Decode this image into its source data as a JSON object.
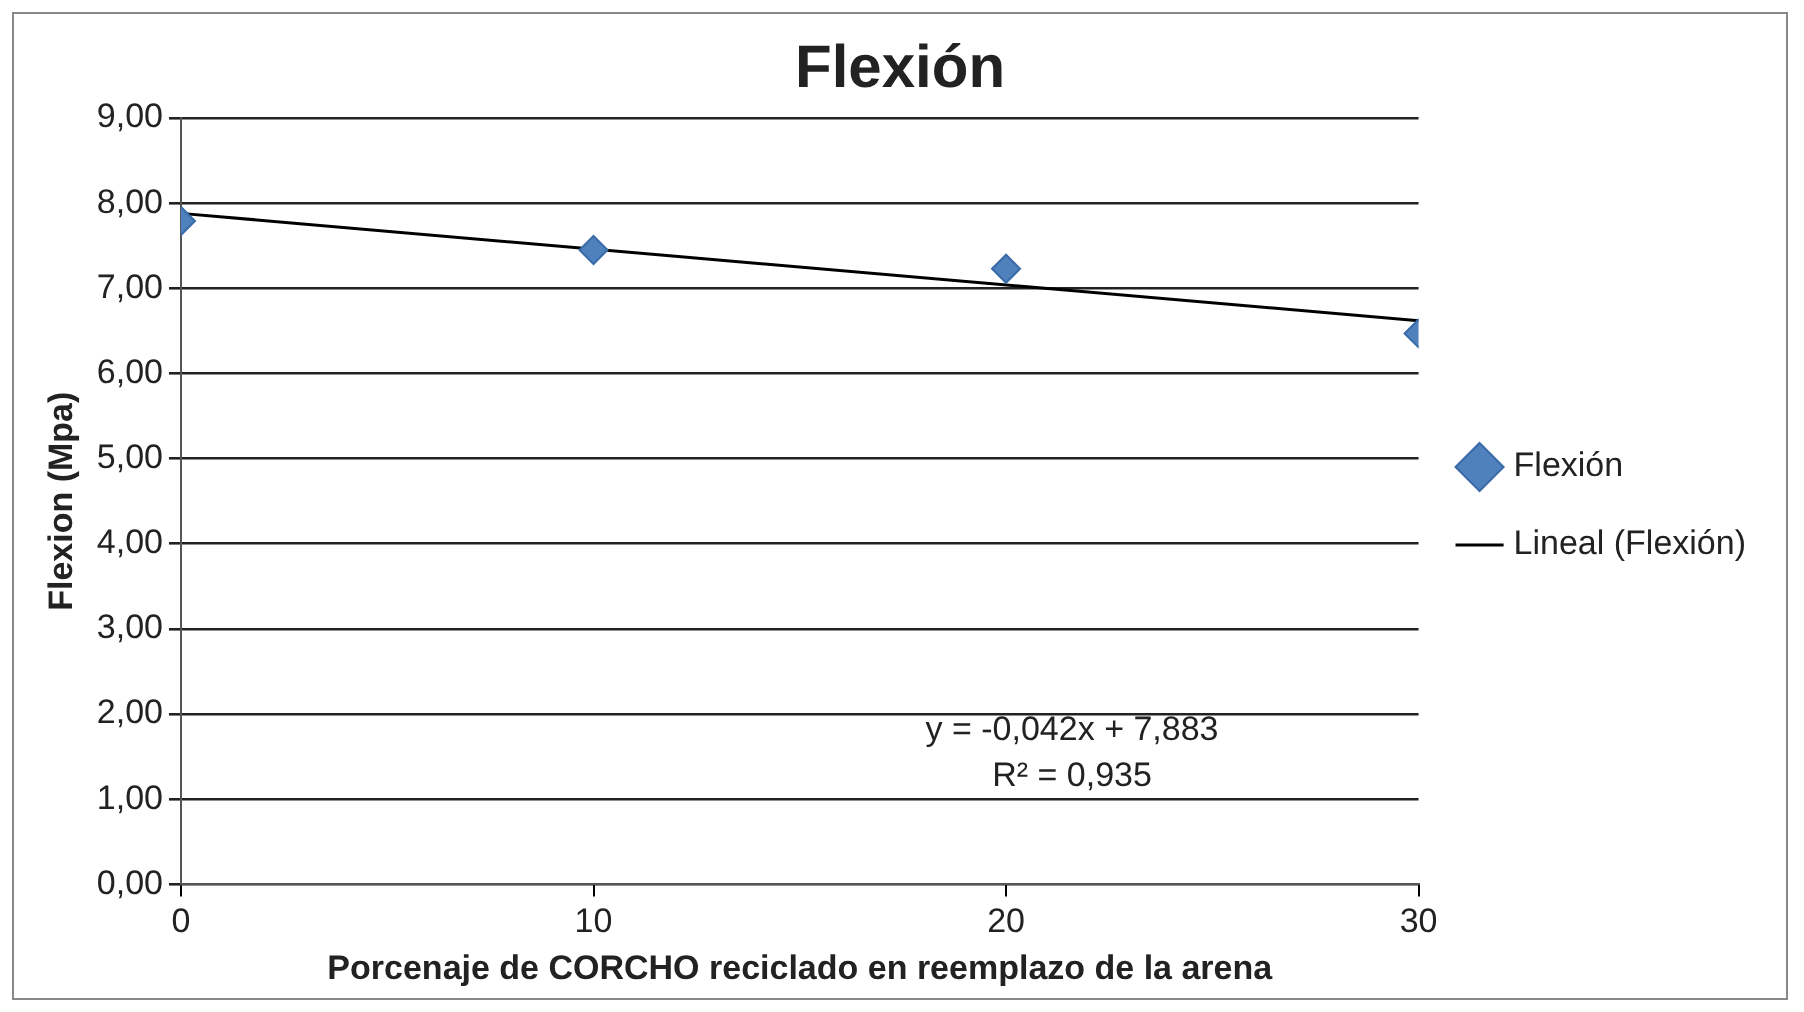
{
  "chart_data": {
    "type": "scatter",
    "title": "Flexión",
    "xlabel": "Porcenaje de CORCHO reciclado en reemplazo de la arena",
    "ylabel": "Flexion (Mpa)",
    "x": [
      0,
      10,
      20,
      30
    ],
    "series": [
      {
        "name": "Flexión",
        "color": "#4f81bd",
        "marker": "diamond",
        "values": [
          7.79,
          7.45,
          7.23,
          6.47
        ]
      },
      {
        "name": "Lineal (Flexión)",
        "type": "line",
        "color": "#000000",
        "marker": "none",
        "x": [
          0,
          30
        ],
        "values": [
          7.88,
          6.62
        ]
      }
    ],
    "xlim": [
      0,
      30
    ],
    "xticks": [
      0,
      10,
      20,
      30
    ],
    "ylim": [
      0,
      9
    ],
    "yticks": [
      {
        "value": 0,
        "label": "0,00"
      },
      {
        "value": 1,
        "label": "1,00"
      },
      {
        "value": 2,
        "label": "2,00"
      },
      {
        "value": 3,
        "label": "3,00"
      },
      {
        "value": 4,
        "label": "4,00"
      },
      {
        "value": 5,
        "label": "5,00"
      },
      {
        "value": 6,
        "label": "6,00"
      },
      {
        "value": 7,
        "label": "7,00"
      },
      {
        "value": 8,
        "label": "8,00"
      },
      {
        "value": 9,
        "label": "9,00"
      }
    ],
    "grid": "y",
    "legend": "right",
    "annotations": [
      "y = -0,042x + 7,883",
      "R² = 0,935"
    ]
  }
}
